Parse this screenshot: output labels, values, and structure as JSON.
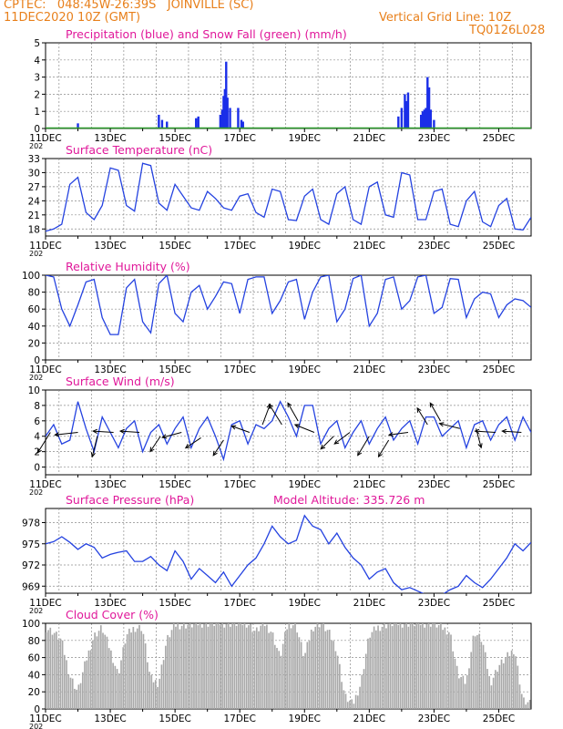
{
  "header": {
    "line1": "CPTEC:   048:45W-26:39S   JOINVILLE (SC)",
    "line2": "11DEC2020 10Z (GMT)",
    "grid_note": "Vertical Grid Line: 10Z",
    "code": "TQ0126L028"
  },
  "colors": {
    "title": "#e0189a",
    "header": "#e8801c",
    "line": "#2442e0",
    "bar": "#1a2ee8",
    "snow": "#2a9a2a",
    "cloud": "#a9a9a9",
    "axis": "#000000",
    "grid": "#8c8c8c"
  },
  "x_tick_labels": [
    "11DEC",
    "13DEC",
    "15DEC",
    "17DEC",
    "19DEC",
    "21DEC",
    "23DEC",
    "25DEC"
  ],
  "year_stub": "202",
  "chart_data": [
    {
      "id": "precip",
      "type": "bar",
      "title": "Precipitation (blue) and Snow Fall (green) (mm/h)",
      "ylim": [
        0,
        5
      ],
      "yticks": [
        0,
        1,
        2,
        3,
        4,
        5
      ],
      "x_unit": "days since 11DEC 00Z",
      "series": [
        {
          "name": "Precipitation",
          "x": [
            1.0,
            3.5,
            3.6,
            3.75,
            4.65,
            4.72,
            5.4,
            5.46,
            5.5,
            5.54,
            5.58,
            5.62,
            5.7,
            5.95,
            6.05,
            6.1,
            10.9,
            11.0,
            11.1,
            11.15,
            11.2,
            11.6,
            11.65,
            11.7,
            11.75,
            11.8,
            11.85,
            11.9,
            12.0
          ],
          "values": [
            0.3,
            0.8,
            0.5,
            0.4,
            0.6,
            0.7,
            0.8,
            1.1,
            1.9,
            2.3,
            3.9,
            1.8,
            1.2,
            1.2,
            0.5,
            0.4,
            0.7,
            1.2,
            2.0,
            1.6,
            2.1,
            0.8,
            1.0,
            1.1,
            1.2,
            3.0,
            2.4,
            1.1,
            0.5
          ]
        },
        {
          "name": "Snow Fall",
          "values_const": 0
        }
      ]
    },
    {
      "id": "temp",
      "type": "line",
      "title": "Surface Temperature (nC)",
      "ylim": [
        16.5,
        33
      ],
      "yticks": [
        18,
        21,
        24,
        27,
        30,
        33
      ],
      "x_unit": "days since 11DEC 00Z",
      "x": [
        0.0,
        0.25,
        0.5,
        0.75,
        1.0,
        1.25,
        1.5,
        1.75,
        2.0,
        2.25,
        2.5,
        2.75,
        3.0,
        3.25,
        3.5,
        3.75,
        4.0,
        4.25,
        4.5,
        4.75,
        5.0,
        5.25,
        5.5,
        5.75,
        6.0,
        6.25,
        6.5,
        6.75,
        7.0,
        7.25,
        7.5,
        7.75,
        8.0,
        8.25,
        8.5,
        8.75,
        9.0,
        9.25,
        9.5,
        9.75,
        10.0,
        10.25,
        10.5,
        10.75,
        11.0,
        11.25,
        11.5,
        11.75,
        12.0,
        12.25,
        12.5,
        12.75,
        13.0,
        13.25,
        13.5,
        13.75,
        14.0,
        14.25,
        14.5,
        14.75,
        15.0
      ],
      "values": [
        17.5,
        18.0,
        19.0,
        27.5,
        29.0,
        21.5,
        20.0,
        23.0,
        31.0,
        30.5,
        23.0,
        21.8,
        32.0,
        31.5,
        23.5,
        22.0,
        27.5,
        25.0,
        22.5,
        22.0,
        26.0,
        24.5,
        22.5,
        22.0,
        25.0,
        25.5,
        21.5,
        20.5,
        26.5,
        26.0,
        20.0,
        19.8,
        25.0,
        26.5,
        20.0,
        19.0,
        25.5,
        27.0,
        20.0,
        19.0,
        27.0,
        28.0,
        21.0,
        20.5,
        30.0,
        29.5,
        20.0,
        20.0,
        26.0,
        26.5,
        19.0,
        18.5,
        24.0,
        26.0,
        19.5,
        18.5,
        23.0,
        24.5,
        18.0,
        17.8,
        20.5
      ]
    },
    {
      "id": "rh",
      "type": "line",
      "title": "Relative Humidity (%)",
      "ylim": [
        0,
        100
      ],
      "yticks": [
        0,
        20,
        40,
        60,
        80,
        100
      ],
      "x_unit": "days since 11DEC 00Z",
      "x": [
        0.0,
        0.25,
        0.5,
        0.75,
        1.0,
        1.25,
        1.5,
        1.75,
        2.0,
        2.25,
        2.5,
        2.75,
        3.0,
        3.25,
        3.5,
        3.75,
        4.0,
        4.25,
        4.5,
        4.75,
        5.0,
        5.25,
        5.5,
        5.75,
        6.0,
        6.25,
        6.5,
        6.75,
        7.0,
        7.25,
        7.5,
        7.75,
        8.0,
        8.25,
        8.5,
        8.75,
        9.0,
        9.25,
        9.5,
        9.75,
        10.0,
        10.25,
        10.5,
        10.75,
        11.0,
        11.25,
        11.5,
        11.75,
        12.0,
        12.25,
        12.5,
        12.75,
        13.0,
        13.25,
        13.5,
        13.75,
        14.0,
        14.25,
        14.5,
        14.75,
        15.0
      ],
      "values": [
        100,
        98,
        60,
        40,
        65,
        92,
        95,
        50,
        30,
        30,
        85,
        95,
        45,
        32,
        90,
        100,
        55,
        45,
        80,
        88,
        60,
        75,
        92,
        90,
        55,
        95,
        98,
        98,
        55,
        70,
        92,
        95,
        48,
        80,
        98,
        100,
        45,
        60,
        96,
        100,
        40,
        55,
        95,
        98,
        60,
        70,
        98,
        100,
        55,
        62,
        96,
        95,
        50,
        72,
        80,
        78,
        50,
        65,
        72,
        70,
        62
      ]
    },
    {
      "id": "wind",
      "type": "line",
      "title": "Surface Wind (m/s)",
      "ylim": [
        -1,
        10
      ],
      "yticks": [
        0,
        2,
        4,
        6,
        8,
        10
      ],
      "x_unit": "days since 11DEC 00Z",
      "x": [
        0.0,
        0.25,
        0.5,
        0.75,
        1.0,
        1.25,
        1.5,
        1.75,
        2.0,
        2.25,
        2.5,
        2.75,
        3.0,
        3.25,
        3.5,
        3.75,
        4.0,
        4.25,
        4.5,
        4.75,
        5.0,
        5.25,
        5.5,
        5.75,
        6.0,
        6.25,
        6.5,
        6.75,
        7.0,
        7.25,
        7.5,
        7.75,
        8.0,
        8.25,
        8.5,
        8.75,
        9.0,
        9.25,
        9.5,
        9.75,
        10.0,
        10.25,
        10.5,
        10.75,
        11.0,
        11.25,
        11.5,
        11.75,
        12.0,
        12.25,
        12.5,
        12.75,
        13.0,
        13.25,
        13.5,
        13.75,
        14.0,
        14.25,
        14.5,
        14.75,
        15.0
      ],
      "values": [
        4.0,
        5.5,
        3.0,
        3.5,
        8.5,
        5.0,
        2.0,
        6.5,
        4.5,
        2.5,
        5.0,
        6.0,
        2.0,
        4.5,
        5.5,
        3.0,
        5.0,
        6.5,
        2.5,
        5.0,
        6.5,
        4.0,
        1.0,
        5.5,
        6.0,
        3.0,
        5.5,
        5.0,
        6.0,
        8.5,
        6.5,
        4.0,
        8.0,
        8.0,
        3.0,
        5.0,
        6.0,
        2.5,
        4.5,
        6.0,
        3.0,
        5.0,
        6.5,
        3.5,
        5.0,
        6.0,
        3.0,
        6.5,
        6.5,
        4.0,
        5.0,
        6.0,
        2.5,
        5.5,
        6.0,
        3.5,
        5.5,
        6.5,
        3.5,
        6.5,
        4.5
      ],
      "vectors": [
        {
          "x": 0.15,
          "y": 4.5,
          "u": -1.0,
          "v": -1.6
        },
        {
          "x": 1.0,
          "y": 4.5,
          "u": -1.8,
          "v": -0.2
        },
        {
          "x": 1.6,
          "y": 4.0,
          "u": -0.4,
          "v": -1.6
        },
        {
          "x": 2.1,
          "y": 4.5,
          "u": -1.6,
          "v": 0.1
        },
        {
          "x": 2.9,
          "y": 4.5,
          "u": -1.5,
          "v": 0.1
        },
        {
          "x": 3.55,
          "y": 4.0,
          "u": -0.8,
          "v": -1.2
        },
        {
          "x": 4.2,
          "y": 4.5,
          "u": -1.5,
          "v": -0.4
        },
        {
          "x": 4.8,
          "y": 3.8,
          "u": -1.2,
          "v": -0.8
        },
        {
          "x": 5.5,
          "y": 3.5,
          "u": -0.8,
          "v": -1.2
        },
        {
          "x": 6.3,
          "y": 4.5,
          "u": -1.4,
          "v": 0.5
        },
        {
          "x": 6.7,
          "y": 5.5,
          "u": 0.6,
          "v": 1.6
        },
        {
          "x": 7.3,
          "y": 5.5,
          "u": -1.0,
          "v": 1.6
        },
        {
          "x": 7.8,
          "y": 6.0,
          "u": -0.8,
          "v": 1.4
        },
        {
          "x": 8.3,
          "y": 4.5,
          "u": -1.5,
          "v": 0.6
        },
        {
          "x": 8.9,
          "y": 4.0,
          "u": -1.0,
          "v": -1.0
        },
        {
          "x": 9.4,
          "y": 4.5,
          "u": -1.2,
          "v": -0.9
        },
        {
          "x": 10.0,
          "y": 4.0,
          "u": -0.9,
          "v": -1.5
        },
        {
          "x": 10.6,
          "y": 3.5,
          "u": -0.8,
          "v": -1.3
        },
        {
          "x": 11.2,
          "y": 4.5,
          "u": -1.5,
          "v": -0.2
        },
        {
          "x": 11.8,
          "y": 5.5,
          "u": -0.8,
          "v": 1.3
        },
        {
          "x": 12.2,
          "y": 6.0,
          "u": -0.8,
          "v": 1.4
        },
        {
          "x": 12.8,
          "y": 5.0,
          "u": -1.6,
          "v": 0.4
        },
        {
          "x": 13.3,
          "y": 5.0,
          "u": 0.4,
          "v": -1.5
        },
        {
          "x": 13.9,
          "y": 4.5,
          "u": -1.6,
          "v": 0.1
        },
        {
          "x": 14.7,
          "y": 4.5,
          "u": -1.5,
          "v": 0.1
        }
      ]
    },
    {
      "id": "pres",
      "type": "line",
      "title": "Surface Pressure (hPa)",
      "subtitle": "Model Altitude: 335.726 m",
      "ylim": [
        968,
        980
      ],
      "yticks": [
        969,
        972,
        975,
        978
      ],
      "x_unit": "days since 11DEC 00Z",
      "x": [
        0.0,
        0.25,
        0.5,
        0.75,
        1.0,
        1.25,
        1.5,
        1.75,
        2.0,
        2.25,
        2.5,
        2.75,
        3.0,
        3.25,
        3.5,
        3.75,
        4.0,
        4.25,
        4.5,
        4.75,
        5.0,
        5.25,
        5.5,
        5.75,
        6.0,
        6.25,
        6.5,
        6.75,
        7.0,
        7.25,
        7.5,
        7.75,
        8.0,
        8.25,
        8.5,
        8.75,
        9.0,
        9.25,
        9.5,
        9.75,
        10.0,
        10.25,
        10.5,
        10.75,
        11.0,
        11.25,
        11.5,
        11.75,
        12.0,
        12.25,
        12.5,
        12.75,
        13.0,
        13.25,
        13.5,
        13.75,
        14.0,
        14.25,
        14.5,
        14.75,
        15.0
      ],
      "values": [
        975.0,
        975.3,
        976.0,
        975.2,
        974.2,
        975.0,
        974.5,
        973.0,
        973.5,
        973.8,
        974.0,
        972.5,
        972.5,
        973.2,
        972.0,
        971.2,
        974.0,
        972.5,
        970.0,
        971.5,
        970.5,
        969.5,
        971.0,
        969.0,
        970.5,
        972.0,
        973.0,
        975.0,
        977.5,
        976.0,
        975.0,
        975.5,
        979.0,
        977.5,
        977.0,
        975.0,
        976.5,
        974.5,
        973.0,
        972.0,
        970.0,
        971.0,
        971.5,
        969.5,
        968.5,
        968.8,
        968.3,
        967.8,
        967.5,
        967.8,
        968.5,
        969.0,
        970.5,
        969.5,
        968.8,
        970.0,
        971.5,
        973.0,
        975.0,
        974.0,
        975.2
      ]
    },
    {
      "id": "cloud",
      "type": "area",
      "title": "Cloud Cover (%)",
      "ylim": [
        0,
        100
      ],
      "yticks": [
        0,
        20,
        40,
        60,
        80,
        100
      ],
      "x_unit": "days since 11DEC 00Z",
      "x": [
        0.0,
        0.25,
        0.5,
        0.75,
        1.0,
        1.25,
        1.5,
        1.75,
        2.0,
        2.25,
        2.5,
        2.75,
        3.0,
        3.25,
        3.5,
        3.75,
        4.0,
        4.25,
        4.5,
        4.75,
        5.0,
        5.25,
        5.5,
        5.75,
        6.0,
        6.25,
        6.5,
        6.75,
        7.0,
        7.25,
        7.5,
        7.75,
        8.0,
        8.25,
        8.5,
        8.75,
        9.0,
        9.25,
        9.5,
        9.75,
        10.0,
        10.25,
        10.5,
        10.75,
        11.0,
        11.25,
        11.5,
        11.75,
        12.0,
        12.25,
        12.5,
        12.75,
        13.0,
        13.25,
        13.5,
        13.75,
        14.0,
        14.25,
        14.5,
        14.75,
        15.0
      ],
      "values": [
        95,
        90,
        80,
        40,
        20,
        55,
        85,
        95,
        70,
        40,
        85,
        95,
        95,
        35,
        30,
        80,
        98,
        98,
        98,
        100,
        100,
        100,
        100,
        100,
        100,
        100,
        90,
        100,
        90,
        60,
        100,
        98,
        60,
        95,
        100,
        90,
        70,
        15,
        5,
        30,
        85,
        95,
        98,
        100,
        100,
        100,
        100,
        100,
        100,
        95,
        90,
        40,
        30,
        90,
        80,
        30,
        50,
        60,
        70,
        10,
        5
      ]
    }
  ]
}
